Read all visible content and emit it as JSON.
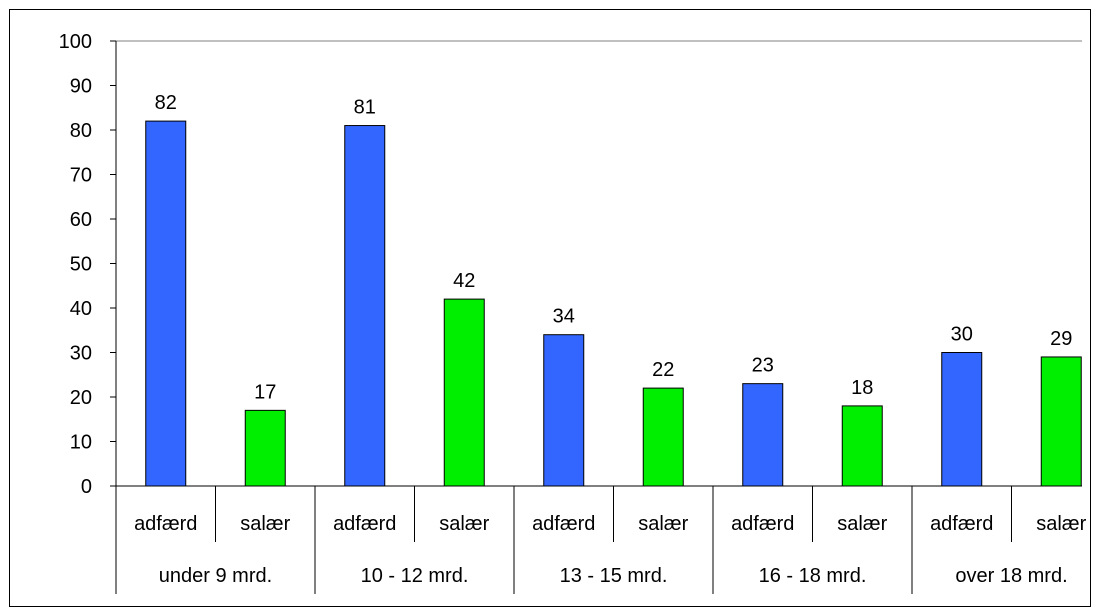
{
  "chart_data": {
    "type": "bar",
    "groups": [
      "under 9 mrd.",
      "10 - 12 mrd.",
      "13 - 15 mrd.",
      "16 - 18 mrd.",
      "over 18 mrd."
    ],
    "bar_labels": [
      "adfærd",
      "salær"
    ],
    "series": [
      {
        "name": "adfærd",
        "values": [
          82,
          81,
          34,
          23,
          30
        ]
      },
      {
        "name": "salær",
        "values": [
          17,
          42,
          22,
          18,
          29
        ]
      }
    ],
    "title": "",
    "xlabel": "",
    "ylabel": "",
    "ylim": [
      0,
      100
    ],
    "yticks": [
      "0",
      "10",
      "20",
      "30",
      "40",
      "50",
      "60",
      "70",
      "80",
      "90",
      "100"
    ],
    "colors": {
      "adfærd": "#3366ff",
      "salær": "#00ee00",
      "axis": "#000000",
      "gridline": "#808080"
    },
    "grid": false,
    "legend": "none"
  }
}
